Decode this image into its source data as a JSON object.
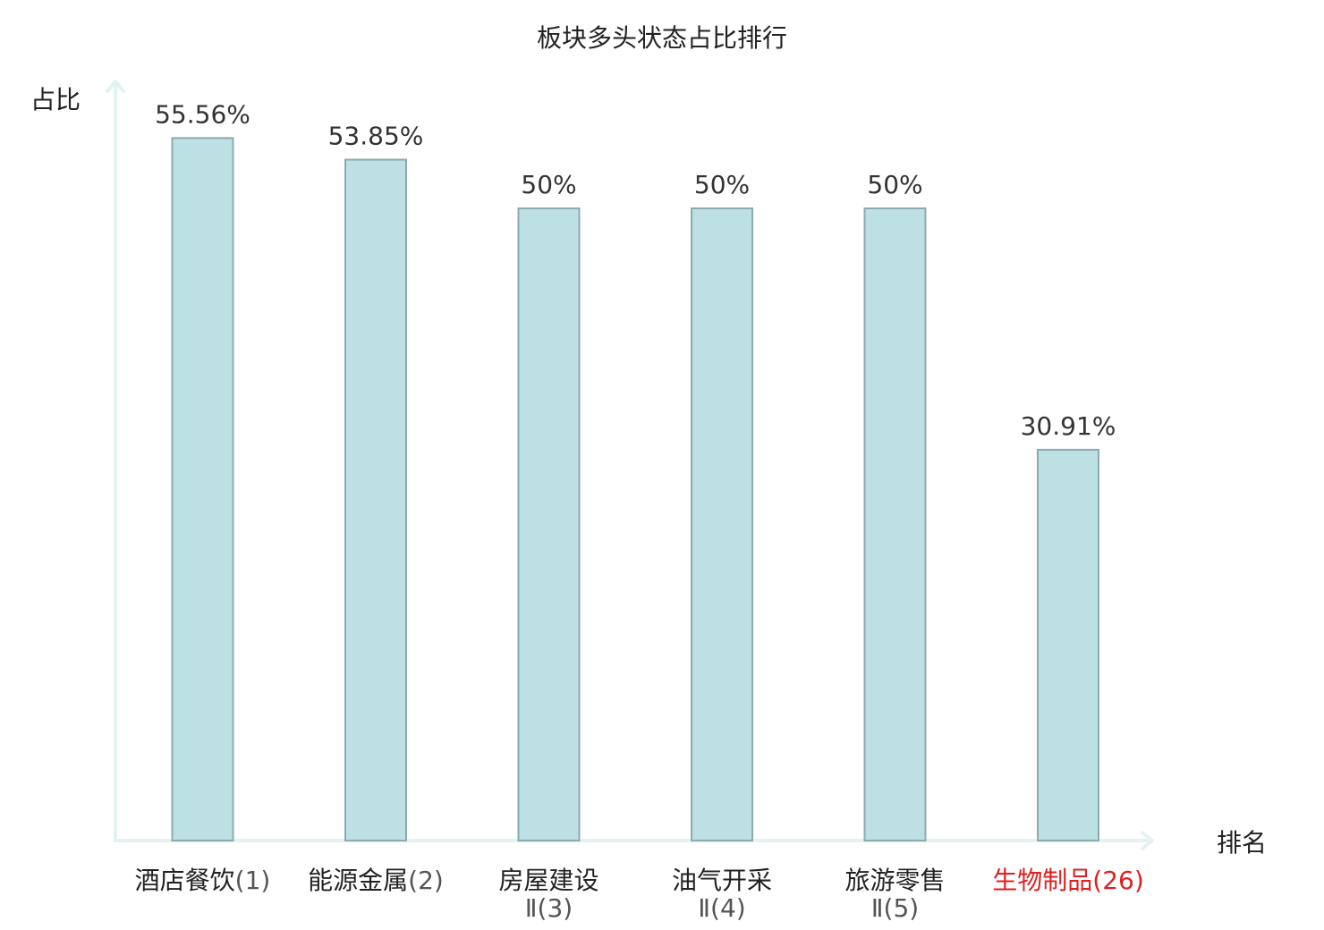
{
  "chart_data": {
    "type": "bar",
    "title": "板块多头状态占比排行",
    "ylabel": "占比",
    "xlabel": "排名",
    "ylim": [
      0,
      60
    ],
    "grid": false,
    "legend": "none",
    "colors": {
      "bar_fill": "#bce0e3",
      "bar_stroke": "#8eaaae",
      "axis": "#e2f3f1",
      "highlight_text": "#e02020",
      "text": "#222222",
      "value_text": "#333333",
      "paren_text": "#555555"
    },
    "categories": [
      {
        "name": "酒店餐饮",
        "rank": "(1)",
        "highlight": false
      },
      {
        "name": "能源金属",
        "rank": "(2)",
        "highlight": false
      },
      {
        "name": "房屋建设",
        "suffix": "Ⅱ",
        "rank": "(3)",
        "highlight": false
      },
      {
        "name": "油气开采",
        "suffix": "Ⅱ",
        "rank": "(4)",
        "highlight": false
      },
      {
        "name": "旅游零售",
        "suffix": "Ⅱ",
        "rank": "(5)",
        "highlight": false
      },
      {
        "name": "生物制品",
        "rank": "(26)",
        "highlight": true
      }
    ],
    "values": [
      55.56,
      53.85,
      50,
      50,
      50,
      30.91
    ],
    "value_labels": [
      "55.56%",
      "53.85%",
      "50%",
      "50%",
      "50%",
      "30.91%"
    ]
  }
}
